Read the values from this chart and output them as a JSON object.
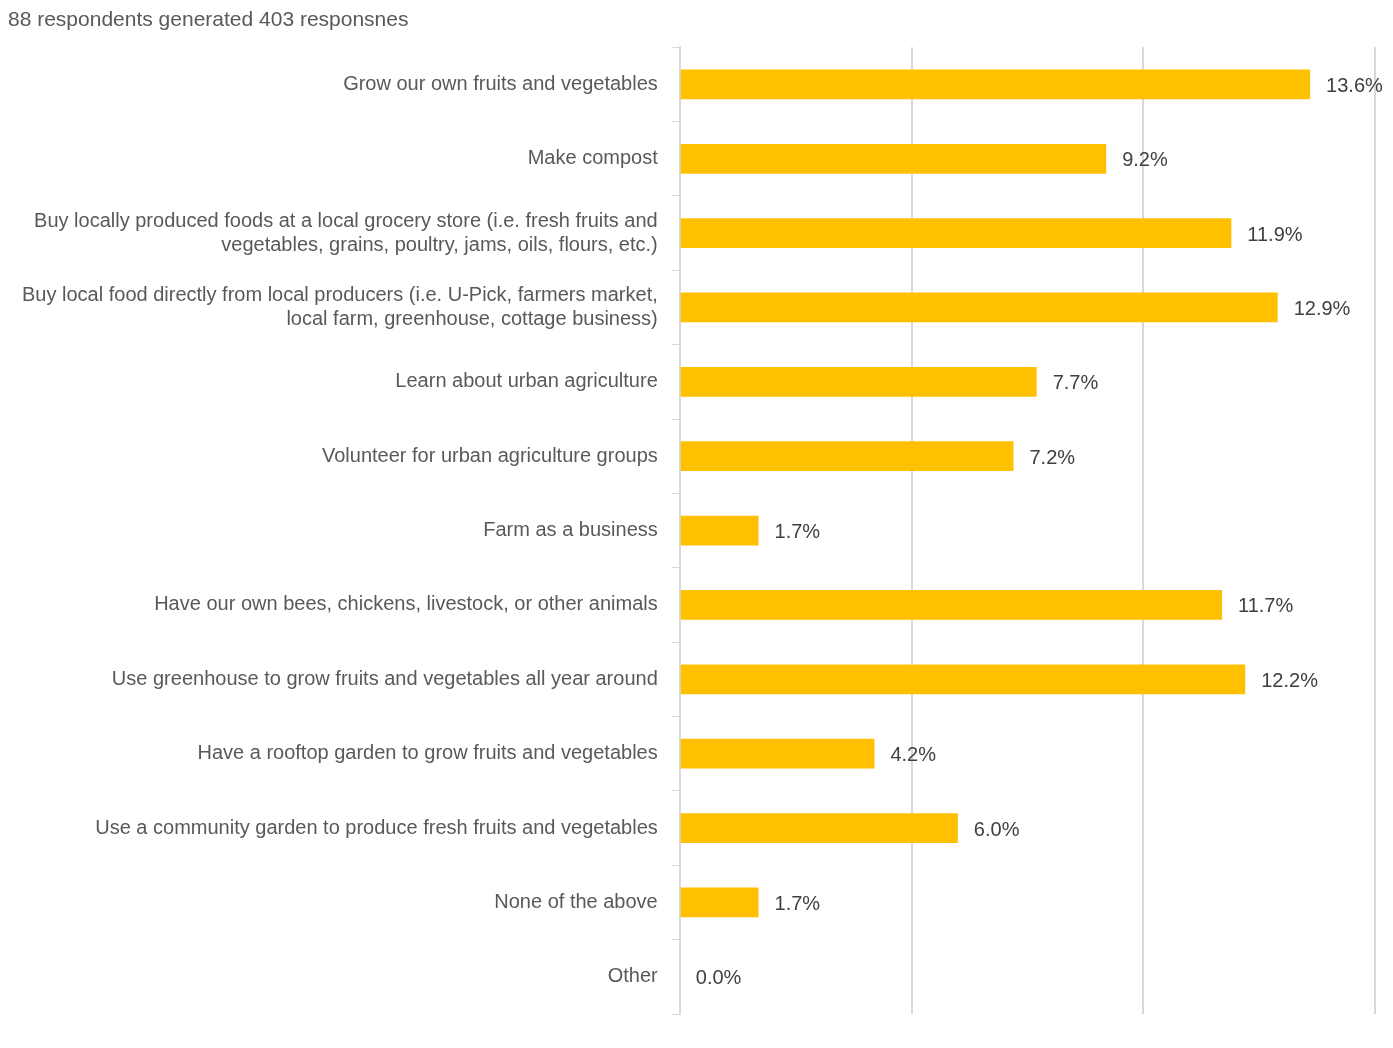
{
  "chart_data": {
    "type": "bar",
    "orientation": "horizontal",
    "title": "88 respondents generated 403 responsnes",
    "categories": [
      "Grow our own fruits and vegetables",
      "Make compost",
      "Buy locally produced foods at a local grocery store (i.e. fresh fruits and vegetables, grains, poultry, jams, oils, flours, etc.)",
      "Buy local food directly from local producers (i.e. U-Pick, farmers market, local farm, greenhouse, cottage business)",
      "Learn about urban agriculture",
      "Volunteer for urban agriculture groups",
      "Farm as a business",
      "Have our own bees, chickens, livestock, or other animals",
      "Use greenhouse to grow fruits and vegetables all year around",
      "Have a rooftop garden to grow fruits and vegetables",
      "Use a community garden to produce fresh fruits and vegetables",
      "None of the above",
      "Other"
    ],
    "values": [
      13.6,
      9.2,
      11.9,
      12.9,
      7.7,
      7.2,
      1.7,
      11.7,
      12.2,
      4.2,
      6.0,
      1.7,
      0.0
    ],
    "value_labels": [
      "13.6%",
      "9.2%",
      "11.9%",
      "12.9%",
      "7.7%",
      "7.2%",
      "1.7%",
      "11.7%",
      "12.2%",
      "4.2%",
      "6.0%",
      "1.7%",
      "0.0%"
    ],
    "color": "#ffc000",
    "xlim": [
      0,
      15
    ],
    "xticks": [
      {
        "value": 0,
        "label": null
      },
      {
        "value": 5,
        "label": null
      },
      {
        "value": 10,
        "label": null
      },
      {
        "value": 15,
        "label": null
      }
    ],
    "grid": "x",
    "tick_labels": "y",
    "legend": false
  }
}
